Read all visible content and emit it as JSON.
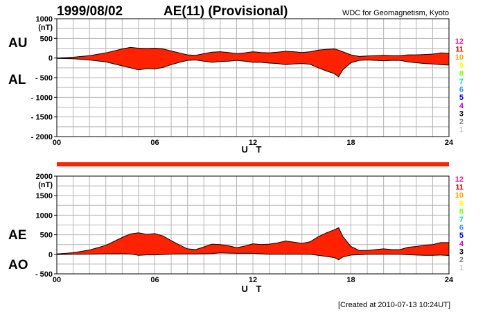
{
  "header": {
    "date": "1999/08/02",
    "title": "AE(11) (Provisional)",
    "source": "WDC for Geomagnetism, Kyoto"
  },
  "footer": {
    "created": "[Created at 2010-07-13 10:24UT]"
  },
  "colors": {
    "fill": "#ff2200",
    "outline": "#000000",
    "grid": "#b4b4b4"
  },
  "level_scale": [
    {
      "label": "12",
      "color": "#ff1493"
    },
    {
      "label": "11",
      "color": "#ff0000"
    },
    {
      "label": "10",
      "color": "#ffa500"
    },
    {
      "label": "9",
      "color": "#ffff00"
    },
    {
      "label": "8",
      "color": "#7fff00"
    },
    {
      "label": "7",
      "color": "#00e0c0"
    },
    {
      "label": "6",
      "color": "#1e90ff"
    },
    {
      "label": "5",
      "color": "#0000cd"
    },
    {
      "label": "4",
      "color": "#cc00cc"
    },
    {
      "label": "3",
      "color": "#000000"
    },
    {
      "label": "2",
      "color": "#808080"
    },
    {
      "label": "1",
      "color": "#c8c8c8"
    }
  ],
  "chart_data": [
    {
      "type": "area",
      "name_top": "AU",
      "name_bottom": "AL",
      "unit_label": "(nT)",
      "ylim": [
        -2000,
        1000
      ],
      "y_ticks": [
        1000,
        500,
        0,
        -500,
        -1000,
        -1500,
        -2000
      ],
      "y_tick_labels": [
        "1000",
        "500",
        "0",
        "- 500",
        "- 1000",
        "- 1500",
        "- 2000"
      ],
      "xlim": [
        0,
        24
      ],
      "x_ticks": [
        0,
        6,
        12,
        18,
        24
      ],
      "x_tick_labels": [
        "00",
        "06",
        "12",
        "18",
        "24"
      ],
      "xlabel": "U T",
      "grid": true,
      "x": [
        0,
        1,
        2,
        3,
        4,
        4.5,
        5,
        5.5,
        6,
        6.5,
        7,
        7.5,
        8,
        8.5,
        9,
        9.5,
        10,
        10.5,
        11,
        11.5,
        12,
        12.5,
        13,
        13.5,
        14,
        14.5,
        15,
        15.5,
        16,
        16.5,
        17,
        17.25,
        17.5,
        18,
        18.5,
        19,
        19.5,
        20,
        20.5,
        21,
        21.5,
        22,
        22.5,
        23,
        23.5,
        24
      ],
      "series": [
        {
          "name": "AU",
          "values": [
            0,
            20,
            60,
            130,
            230,
            270,
            250,
            240,
            250,
            230,
            180,
            130,
            80,
            70,
            110,
            150,
            160,
            140,
            110,
            130,
            160,
            140,
            130,
            150,
            170,
            160,
            140,
            160,
            200,
            220,
            230,
            200,
            160,
            80,
            40,
            50,
            60,
            70,
            60,
            60,
            80,
            80,
            90,
            100,
            130,
            120
          ]
        },
        {
          "name": "AL",
          "values": [
            -10,
            -20,
            -50,
            -100,
            -200,
            -250,
            -300,
            -270,
            -280,
            -240,
            -170,
            -110,
            -60,
            -50,
            -80,
            -110,
            -90,
            -80,
            -60,
            -80,
            -110,
            -110,
            -130,
            -140,
            -170,
            -150,
            -140,
            -160,
            -250,
            -330,
            -400,
            -480,
            -300,
            -120,
            -60,
            -50,
            -60,
            -70,
            -60,
            -60,
            -100,
            -120,
            -140,
            -150,
            -170,
            -180
          ]
        }
      ]
    },
    {
      "type": "area",
      "name_top": "AE",
      "name_bottom": "AO",
      "unit_label": "(nT)",
      "ylim": [
        -500,
        2000
      ],
      "y_ticks": [
        2000,
        1500,
        1000,
        500,
        0,
        -500
      ],
      "y_tick_labels": [
        "2000",
        "1500",
        "1000",
        "500",
        "0",
        "- 500"
      ],
      "xlim": [
        0,
        24
      ],
      "x_ticks": [
        0,
        6,
        12,
        18,
        24
      ],
      "x_tick_labels": [
        "00",
        "06",
        "12",
        "18",
        "24"
      ],
      "xlabel": "U T",
      "grid": true,
      "x": [
        0,
        1,
        2,
        3,
        4,
        4.5,
        5,
        5.5,
        6,
        6.5,
        7,
        7.5,
        8,
        8.5,
        9,
        9.5,
        10,
        10.5,
        11,
        11.5,
        12,
        12.5,
        13,
        13.5,
        14,
        14.5,
        15,
        15.5,
        16,
        16.5,
        17,
        17.25,
        17.5,
        18,
        18.5,
        19,
        19.5,
        20,
        20.5,
        21,
        21.5,
        22,
        22.5,
        23,
        23.5,
        24
      ],
      "series": [
        {
          "name": "AE",
          "values": [
            10,
            40,
            110,
            230,
            430,
            520,
            550,
            510,
            530,
            470,
            350,
            240,
            140,
            120,
            190,
            260,
            250,
            220,
            170,
            210,
            270,
            250,
            260,
            290,
            340,
            310,
            280,
            320,
            450,
            550,
            630,
            680,
            460,
            200,
            100,
            100,
            120,
            140,
            120,
            120,
            180,
            200,
            230,
            250,
            300,
            300
          ]
        },
        {
          "name": "AO",
          "values": [
            -5,
            0,
            5,
            15,
            15,
            10,
            -25,
            -15,
            -15,
            -5,
            5,
            10,
            10,
            10,
            15,
            20,
            35,
            30,
            25,
            25,
            25,
            15,
            0,
            5,
            0,
            5,
            0,
            0,
            -25,
            -55,
            -85,
            -140,
            -70,
            -20,
            -10,
            0,
            0,
            0,
            0,
            0,
            -10,
            -20,
            -25,
            -25,
            -20,
            -30
          ]
        }
      ]
    }
  ]
}
